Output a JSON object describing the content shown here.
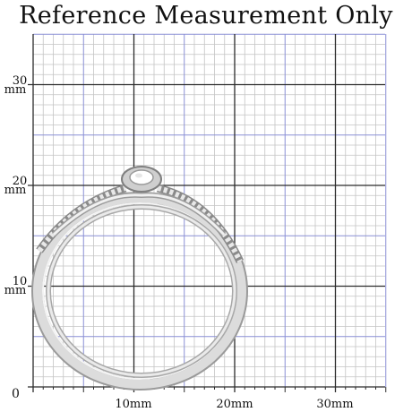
{
  "title": "Reference Measurement Only",
  "axis": {
    "origin_label": "0",
    "x_labels": [
      "10mm",
      "20mm",
      "30mm"
    ],
    "y_labels": [
      {
        "value": "10",
        "unit": "mm"
      },
      {
        "value": "20",
        "unit": "mm"
      },
      {
        "value": "30",
        "unit": "mm"
      }
    ]
  },
  "colors": {
    "minor_grid": "#c4c4c4",
    "mid_grid": "#8a8fd6",
    "major_grid": "#2b2b2b",
    "ring_metal": "#d9d9d9",
    "ring_shadow": "#9a9a9a",
    "ring_highlight": "#ffffff"
  },
  "subject": {
    "icon": "ring-photo",
    "description_icon": "wedding-ring-set-with-center-stone"
  }
}
